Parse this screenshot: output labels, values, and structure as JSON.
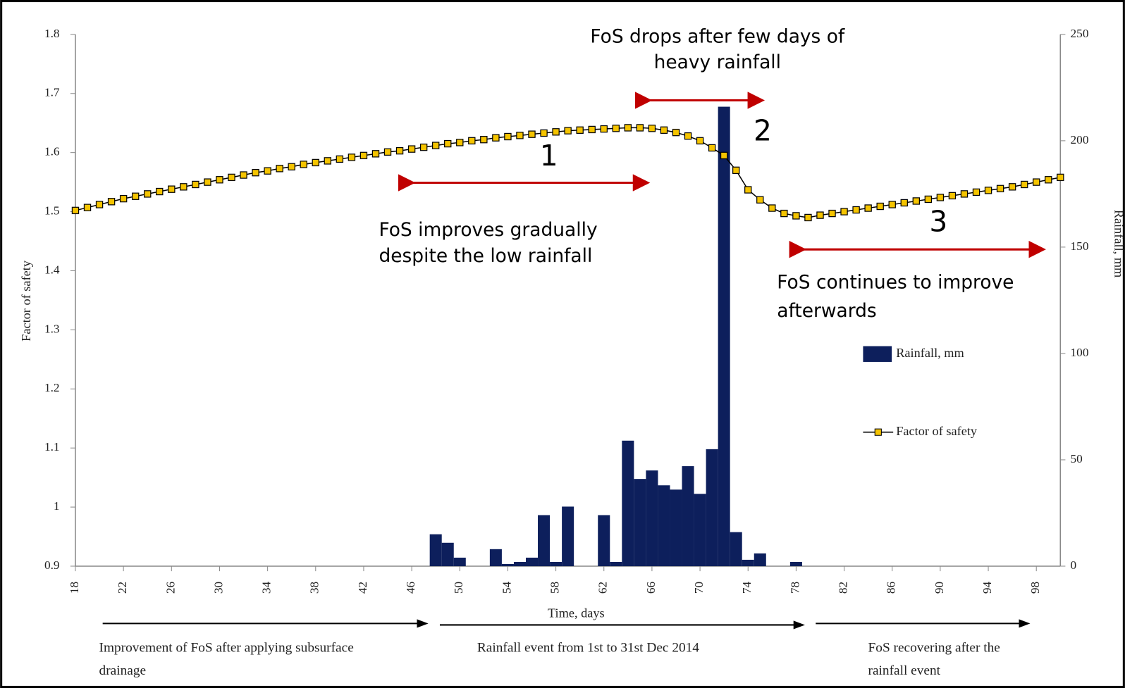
{
  "chart_data": {
    "type": "bar-line",
    "xlabel": "Time, days",
    "ylabel": "Factor of safety",
    "y2label": "Rainfall, mm",
    "xlim": [
      18,
      100
    ],
    "xticks": [
      18,
      22,
      26,
      30,
      34,
      38,
      42,
      46,
      50,
      54,
      58,
      62,
      66,
      70,
      74,
      78,
      82,
      86,
      90,
      94,
      98
    ],
    "ylim": [
      0.9,
      1.8
    ],
    "yticks": [
      0.9,
      1,
      1.1,
      1.2,
      1.3,
      1.4,
      1.5,
      1.6,
      1.7,
      1.8
    ],
    "y2lim": [
      0,
      250
    ],
    "y2ticks": [
      0,
      50,
      100,
      150,
      200,
      250
    ],
    "series": [
      {
        "name": "Rainfall, mm",
        "type": "bar",
        "axis": "y2",
        "color": "#0d1f5c",
        "x": [
          48,
          49,
          50,
          51,
          52,
          53,
          54,
          55,
          56,
          57,
          58,
          59,
          60,
          61,
          62,
          63,
          64,
          65,
          66,
          67,
          68,
          69,
          70,
          71,
          72,
          73,
          74,
          75,
          76,
          77,
          78
        ],
        "values": [
          15,
          11,
          4,
          0,
          0,
          8,
          1,
          2,
          4,
          24,
          2,
          28,
          0,
          0,
          24,
          2,
          59,
          41,
          45,
          38,
          36,
          47,
          34,
          55,
          216,
          16,
          3,
          6,
          0,
          0,
          2
        ]
      },
      {
        "name": "Factor of safety",
        "type": "line",
        "color": "#f5c400",
        "x": [
          18,
          19,
          20,
          21,
          22,
          23,
          24,
          25,
          26,
          27,
          28,
          29,
          30,
          31,
          32,
          33,
          34,
          35,
          36,
          37,
          38,
          39,
          40,
          41,
          42,
          43,
          44,
          45,
          46,
          47,
          48,
          49,
          50,
          51,
          52,
          53,
          54,
          55,
          56,
          57,
          58,
          59,
          60,
          61,
          62,
          63,
          64,
          65,
          66,
          67,
          68,
          69,
          70,
          71,
          72,
          73,
          74,
          75,
          76,
          77,
          78,
          79,
          80,
          81,
          82,
          83,
          84,
          85,
          86,
          87,
          88,
          89,
          90,
          91,
          92,
          93,
          94,
          95,
          96,
          97,
          98,
          99,
          100
        ],
        "values": [
          1.502,
          1.507,
          1.512,
          1.517,
          1.522,
          1.526,
          1.53,
          1.534,
          1.538,
          1.542,
          1.546,
          1.55,
          1.554,
          1.558,
          1.562,
          1.566,
          1.569,
          1.573,
          1.576,
          1.58,
          1.583,
          1.586,
          1.589,
          1.592,
          1.595,
          1.598,
          1.601,
          1.603,
          1.606,
          1.609,
          1.612,
          1.615,
          1.617,
          1.62,
          1.622,
          1.625,
          1.627,
          1.629,
          1.631,
          1.633,
          1.635,
          1.637,
          1.638,
          1.639,
          1.64,
          1.641,
          1.642,
          1.642,
          1.641,
          1.638,
          1.634,
          1.628,
          1.62,
          1.608,
          1.595,
          1.57,
          1.537,
          1.52,
          1.506,
          1.497,
          1.493,
          1.49,
          1.494,
          1.497,
          1.5,
          1.503,
          1.506,
          1.509,
          1.512,
          1.515,
          1.518,
          1.521,
          1.524,
          1.527,
          1.53,
          1.533,
          1.536,
          1.539,
          1.542,
          1.546,
          1.55,
          1.554,
          1.558
        ]
      }
    ],
    "annotations": [
      {
        "lines": [
          "FoS drops after few days of",
          "heavy rainfall"
        ]
      },
      {
        "lines": [
          "2"
        ]
      },
      {
        "lines": [
          "1"
        ]
      },
      {
        "lines": [
          "FoS improves gradually",
          "despite the low rainfall"
        ]
      },
      {
        "lines": [
          "3"
        ]
      },
      {
        "lines": [
          "FoS continues to improve",
          "afterwards"
        ]
      }
    ],
    "phases": [
      {
        "lines": [
          "Improvement of FoS after applying subsurface",
          "drainage"
        ]
      },
      {
        "lines": [
          "Rainfall event from 1st to 31st Dec 2014"
        ]
      },
      {
        "lines": [
          "FoS recovering after the",
          "rainfall event"
        ]
      }
    ]
  }
}
